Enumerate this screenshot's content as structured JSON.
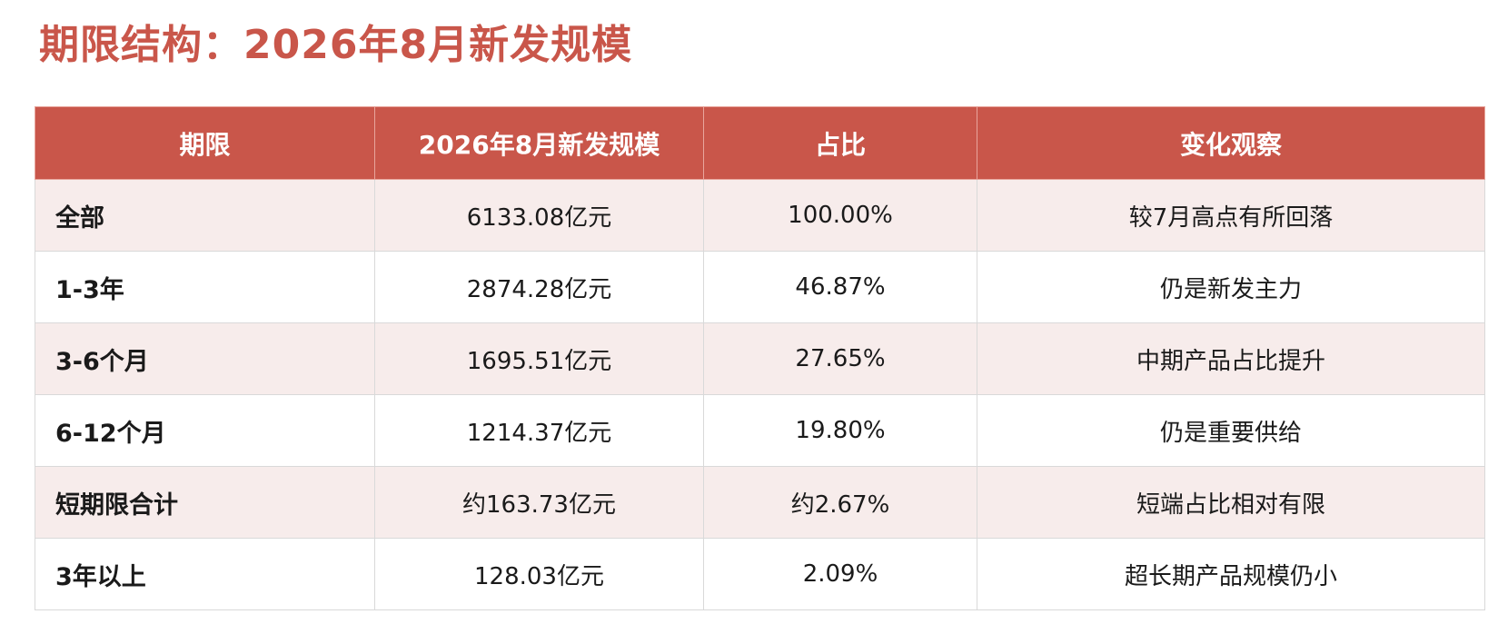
{
  "title": "期限结构：2026年8月新发规模",
  "table": {
    "headers": [
      "期限",
      "2026年8月新发规模",
      "占比",
      "变化观察"
    ],
    "rows": [
      {
        "term": "全部",
        "amount": "6133.08亿元",
        "share": "100.00%",
        "note": "较7月高点有所回落"
      },
      {
        "term": "1-3年",
        "amount": "2874.28亿元",
        "share": "46.87%",
        "note": "仍是新发主力"
      },
      {
        "term": "3-6个月",
        "amount": "1695.51亿元",
        "share": "27.65%",
        "note": "中期产品占比提升"
      },
      {
        "term": "6-12个月",
        "amount": "1214.37亿元",
        "share": "19.80%",
        "note": "仍是重要供给"
      },
      {
        "term": "短期限合计",
        "amount": "约163.73亿元",
        "share": "约2.67%",
        "note": "短端占比相对有限"
      },
      {
        "term": "3年以上",
        "amount": "128.03亿元",
        "share": "2.09%",
        "note": "超长期产品规模仍小"
      }
    ]
  },
  "colors": {
    "accent": "#c9564a",
    "row_shade": "#f7eceb",
    "border": "#d9d9d9"
  }
}
